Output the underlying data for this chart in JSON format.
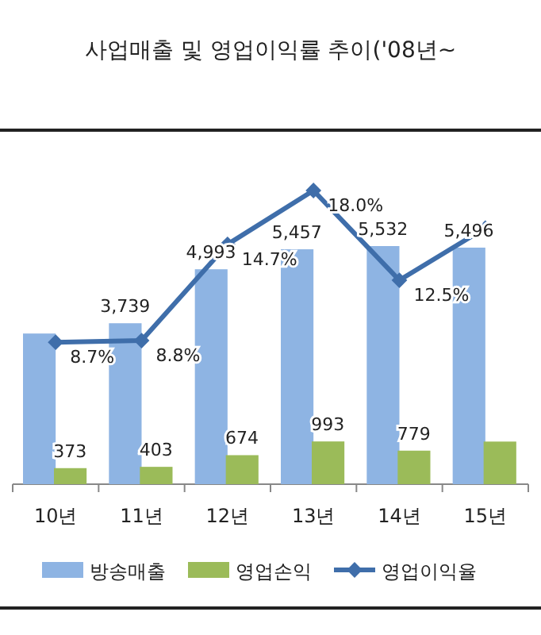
{
  "chart_data": {
    "type": "bar",
    "title": "사업매출 및 영업이익률 추이('08년~",
    "categories": [
      "10년",
      "11년",
      "12년",
      "13년",
      "14년",
      "15년"
    ],
    "series": [
      {
        "name": "방송매출",
        "type": "bar",
        "color": "#8eb4e3",
        "values": [
          3500,
          3739,
          4993,
          5457,
          5532,
          5496
        ],
        "value_labels": [
          null,
          "3,739",
          "4,993",
          "5,457",
          "5,532",
          "5,496"
        ]
      },
      {
        "name": "영업손익",
        "type": "bar",
        "color": "#9bbb59",
        "values": [
          373,
          403,
          674,
          993,
          779,
          990
        ],
        "value_labels": [
          "373",
          "403",
          "674",
          "993",
          "779",
          null
        ]
      },
      {
        "name": "영업이익율",
        "type": "line",
        "axis": "y2",
        "color": "#3f6eaa",
        "marker": "diamond",
        "values": [
          8.7,
          8.8,
          14.7,
          18.0,
          12.5,
          15.7
        ],
        "value_labels": [
          "8.7%",
          "8.8%",
          "14.7%",
          "18.0%",
          "12.5%",
          null
        ]
      }
    ],
    "legend": "bottom"
  }
}
